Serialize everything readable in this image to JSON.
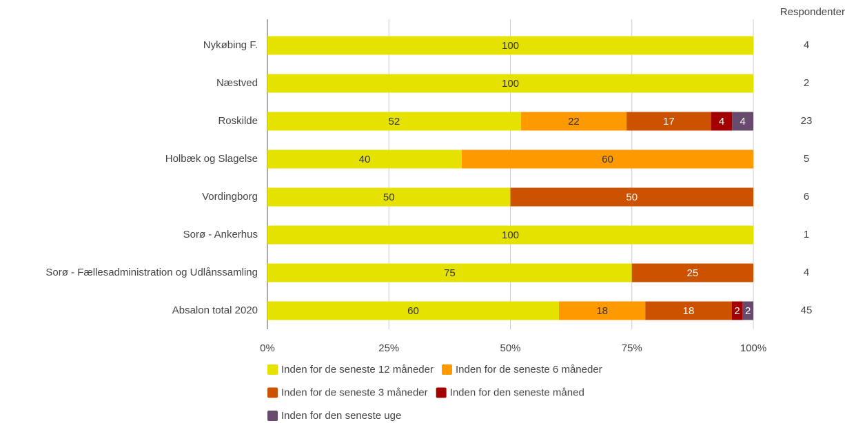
{
  "chart_data": {
    "type": "stacked-bar-horizontal",
    "categories": [
      "Nykøbing F.",
      "Næstved",
      "Roskilde",
      "Holbæk og Slagelse",
      "Vordingborg",
      "Sorø - Ankerhus",
      "Sorø - Fællesadministration og Udlånssamling",
      "Absalon total 2020"
    ],
    "series": [
      {
        "name": "Inden for de seneste 12 måneder",
        "color": "#e6e200",
        "values": [
          100,
          100,
          52.17,
          40,
          50,
          100,
          75,
          60
        ],
        "value_labels": [
          "100",
          "100",
          "52",
          "40",
          "50",
          "100",
          "75",
          "60"
        ]
      },
      {
        "name": "Inden for de seneste 6 måneder",
        "color": "#ff9900",
        "values": [
          null,
          null,
          21.74,
          60,
          null,
          null,
          null,
          17.78
        ],
        "value_labels": [
          null,
          null,
          "22",
          "60",
          null,
          null,
          null,
          "18"
        ]
      },
      {
        "name": "Inden for de seneste 3 måneder",
        "color": "#cc5200",
        "values": [
          null,
          null,
          17.39,
          null,
          50,
          null,
          25,
          17.78
        ],
        "value_labels": [
          null,
          null,
          "17",
          null,
          "50",
          null,
          "25",
          "18"
        ]
      },
      {
        "name": "Inden for den seneste måned",
        "color": "#a30000",
        "values": [
          null,
          null,
          4.35,
          null,
          null,
          null,
          null,
          2.22
        ],
        "value_labels": [
          null,
          null,
          "4",
          null,
          null,
          null,
          null,
          "2"
        ]
      },
      {
        "name": "Inden for den seneste uge",
        "color": "#674a6c",
        "values": [
          null,
          null,
          4.35,
          null,
          null,
          null,
          null,
          2.22
        ],
        "value_labels": [
          null,
          null,
          "4",
          null,
          null,
          null,
          null,
          "2"
        ]
      }
    ],
    "xlim": [
      0,
      100
    ],
    "xticks": [
      {
        "value": 0,
        "label": "0%"
      },
      {
        "value": 25,
        "label": "25%"
      },
      {
        "value": 50,
        "label": "50%"
      },
      {
        "value": 75,
        "label": "75%"
      },
      {
        "value": 100,
        "label": "100%"
      }
    ],
    "grid": true,
    "legend": "bottom",
    "respondents": {
      "title": "Respondenter",
      "values": [
        4,
        2,
        23,
        5,
        6,
        1,
        4,
        45
      ]
    }
  }
}
